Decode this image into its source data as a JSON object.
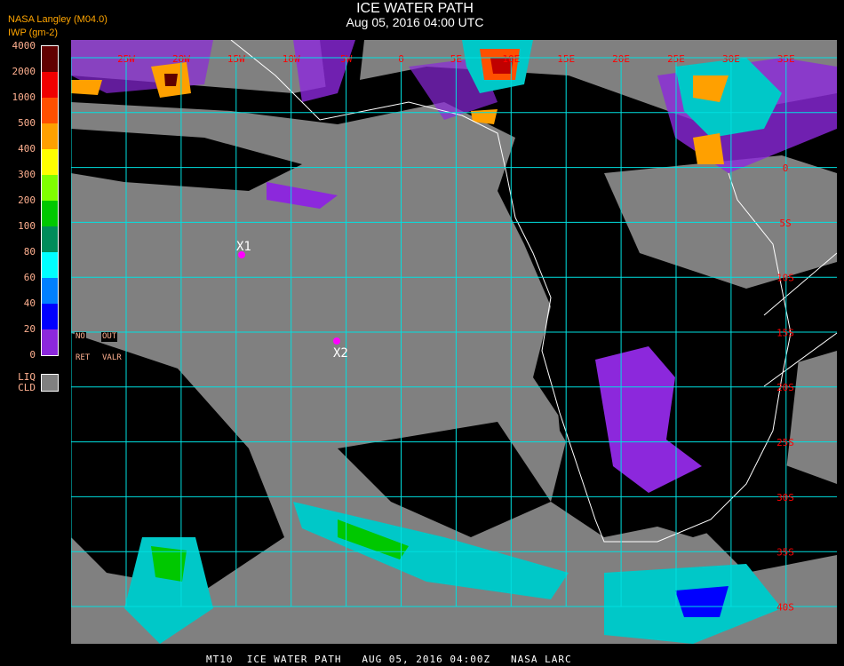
{
  "header": {
    "title": "ICE WATER PATH",
    "datetime": "Aug 05, 2016 04:00 UTC"
  },
  "source": "NASA Langley (M04.0)",
  "legend": {
    "unit": "IWP (gm-2)",
    "levels": [
      "4000",
      "2000",
      "1000",
      "500",
      "400",
      "300",
      "200",
      "100",
      "80",
      "60",
      "40",
      "20",
      "0"
    ],
    "colors": [
      "#600000",
      "#f00000",
      "#ff5000",
      "#ffa000",
      "#ffff00",
      "#80ff00",
      "#00c800",
      "#008c5a",
      "#00ffff",
      "#0080ff",
      "#0000ff",
      "#8c28dc"
    ],
    "no_retrieval": {
      "line1a": "NO",
      "line1b": "OUT",
      "line2a": "RET",
      "line2b": "VALR"
    },
    "liquid_cloud": {
      "line1": "LIQ",
      "line2": "CLD",
      "color": "#808080"
    }
  },
  "map": {
    "lon_labels": [
      "25W",
      "20W",
      "15W",
      "10W",
      "5W",
      "0",
      "5E",
      "10E",
      "15E",
      "20E",
      "25E",
      "30E",
      "35E"
    ],
    "lat_labels": [
      "0",
      "5S",
      "10S",
      "15S",
      "20S",
      "25S",
      "30S",
      "35S",
      "40S"
    ],
    "grid_color": "#00e0e0",
    "label_color": "#ff0000",
    "markers": [
      {
        "label": "X1",
        "color": "#ff00ff"
      },
      {
        "label": "X2",
        "color": "#ff00ff"
      }
    ]
  },
  "footer": "MT10  ICE WATER PATH   AUG 05, 2016 04:00Z   NASA LARC"
}
